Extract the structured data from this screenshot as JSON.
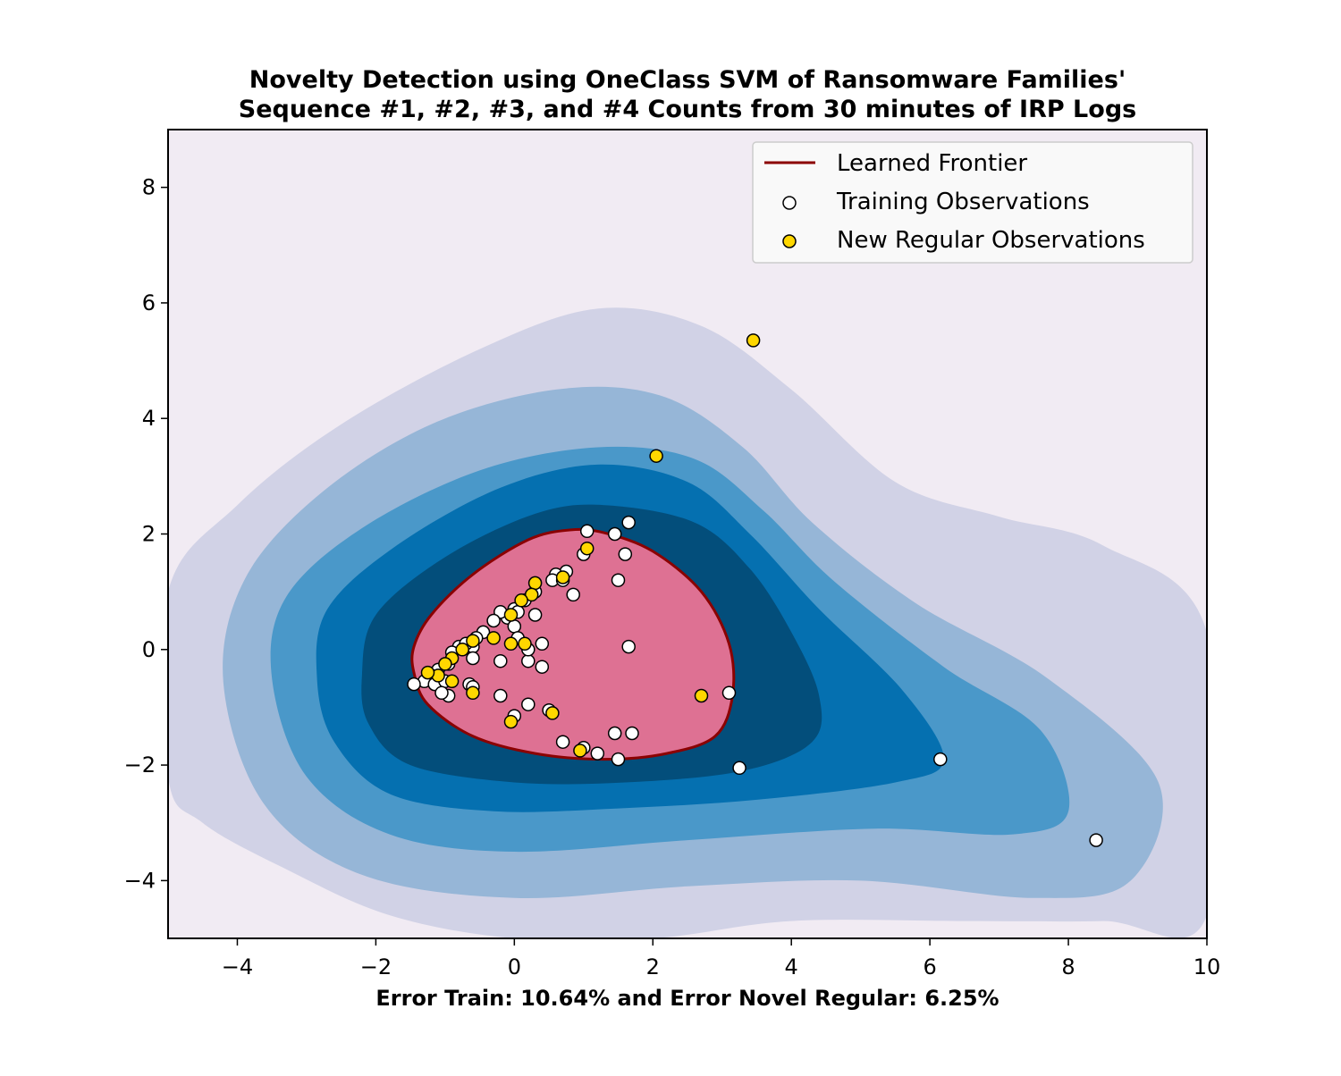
{
  "chart_data": {
    "type": "scatter",
    "title_line1": "Novelty Detection using OneClass SVM of Ransomware Families'",
    "title_line2": "Sequence #1, #2, #3, and #4 Counts from 30 minutes of IRP Logs",
    "xlabel": "Error Train: 10.64% and Error Novel Regular: 6.25%",
    "ylabel": "",
    "xlim": [
      -5,
      10
    ],
    "ylim": [
      -5,
      9
    ],
    "xticks": [
      -4,
      -2,
      0,
      2,
      4,
      6,
      8,
      10
    ],
    "yticks": [
      -4,
      -2,
      0,
      2,
      4,
      6,
      8
    ],
    "xtick_labels": [
      "−4",
      "−2",
      "0",
      "2",
      "4",
      "6",
      "8",
      "10"
    ],
    "ytick_labels": [
      "−4",
      "−2",
      "0",
      "2",
      "4",
      "6",
      "8"
    ],
    "grid": false,
    "legend_position": "top-right",
    "legend": [
      {
        "label": "Learned Frontier",
        "kind": "line",
        "color": "#8b0000"
      },
      {
        "label": "Training Observations",
        "kind": "marker",
        "color": "#ffffff"
      },
      {
        "label": "New Regular Observations",
        "kind": "marker",
        "color": "#ffd700"
      }
    ],
    "colors": {
      "background": "#f1ebf3",
      "contour_levels": [
        "#d1d2e6",
        "#96b6d7",
        "#4a98c9",
        "#0570b0",
        "#034e7b"
      ],
      "inside_region": "#de7193",
      "frontier": "#8b0000"
    },
    "frontier_center": [
      0.8,
      0.1
    ],
    "frontier": [
      [
        -1.45,
        -0.4
      ],
      [
        -1.45,
        0.05
      ],
      [
        -1.2,
        0.6
      ],
      [
        -0.6,
        1.3
      ],
      [
        0.2,
        1.9
      ],
      [
        0.8,
        2.07
      ],
      [
        1.3,
        2.02
      ],
      [
        2.0,
        1.7
      ],
      [
        2.7,
        1.0
      ],
      [
        3.1,
        0.1
      ],
      [
        3.15,
        -0.8
      ],
      [
        2.9,
        -1.5
      ],
      [
        2.2,
        -1.8
      ],
      [
        1.3,
        -1.9
      ],
      [
        0.3,
        -1.8
      ],
      [
        -0.6,
        -1.5
      ],
      [
        -1.25,
        -0.95
      ]
    ],
    "contour_bands": [
      [
        [
          -5,
          1
        ],
        [
          -4,
          2.5
        ],
        [
          -2.5,
          3.9
        ],
        [
          -0.5,
          5.2
        ],
        [
          1.2,
          5.9
        ],
        [
          2.7,
          5.6
        ],
        [
          4,
          4.5
        ],
        [
          5.5,
          2.9
        ],
        [
          7,
          2.3
        ],
        [
          8.5,
          1.8
        ],
        [
          10,
          0.3
        ],
        [
          10,
          -4.6
        ],
        [
          8.5,
          -4.7
        ],
        [
          6.5,
          -4.7
        ],
        [
          4,
          -4.7
        ],
        [
          2,
          -5.0
        ],
        [
          0,
          -5.0
        ],
        [
          -1.8,
          -4.6
        ],
        [
          -3.3,
          -3.8
        ],
        [
          -4.5,
          -3.0
        ],
        [
          -5,
          -2.2
        ]
      ],
      [
        [
          -4.2,
          -0.6
        ],
        [
          -3.9,
          1.2
        ],
        [
          -2.8,
          2.7
        ],
        [
          -1.2,
          3.9
        ],
        [
          0.6,
          4.5
        ],
        [
          2.1,
          4.4
        ],
        [
          3.3,
          3.5
        ],
        [
          4.3,
          2.2
        ],
        [
          5.8,
          0.8
        ],
        [
          7.7,
          -0.5
        ],
        [
          9.3,
          -2.3
        ],
        [
          8.9,
          -4.0
        ],
        [
          7.5,
          -4.3
        ],
        [
          5.0,
          -4.0
        ],
        [
          2.5,
          -4.1
        ],
        [
          0,
          -4.3
        ],
        [
          -2.2,
          -3.9
        ],
        [
          -3.6,
          -2.7
        ]
      ],
      [
        [
          -3.5,
          -0.5
        ],
        [
          -3.3,
          0.9
        ],
        [
          -2.2,
          2.1
        ],
        [
          -0.5,
          3.1
        ],
        [
          1.2,
          3.5
        ],
        [
          2.6,
          3.3
        ],
        [
          3.6,
          2.4
        ],
        [
          4.6,
          1.2
        ],
        [
          6.2,
          -0.3
        ],
        [
          7.6,
          -1.4
        ],
        [
          8.0,
          -2.8
        ],
        [
          7.2,
          -3.2
        ],
        [
          5.2,
          -3.1
        ],
        [
          2.5,
          -3.3
        ],
        [
          0,
          -3.5
        ],
        [
          -1.8,
          -3.2
        ],
        [
          -3.0,
          -2.2
        ]
      ],
      [
        [
          -2.85,
          -0.5
        ],
        [
          -2.7,
          0.7
        ],
        [
          -1.7,
          1.8
        ],
        [
          -0.2,
          2.8
        ],
        [
          1.2,
          3.2
        ],
        [
          2.5,
          2.9
        ],
        [
          3.4,
          2.0
        ],
        [
          4.4,
          0.7
        ],
        [
          5.6,
          -0.7
        ],
        [
          6.2,
          -1.9
        ],
        [
          5.5,
          -2.3
        ],
        [
          3.5,
          -2.6
        ],
        [
          1.5,
          -2.75
        ],
        [
          -0.3,
          -2.8
        ],
        [
          -1.8,
          -2.5
        ],
        [
          -2.6,
          -1.6
        ]
      ],
      [
        [
          -2.2,
          -0.45
        ],
        [
          -2.0,
          0.6
        ],
        [
          -1.0,
          1.6
        ],
        [
          0.3,
          2.35
        ],
        [
          1.3,
          2.5
        ],
        [
          2.6,
          2.2
        ],
        [
          3.4,
          1.4
        ],
        [
          4.0,
          0.3
        ],
        [
          4.4,
          -0.8
        ],
        [
          4.3,
          -1.6
        ],
        [
          3.3,
          -2.1
        ],
        [
          1.6,
          -2.3
        ],
        [
          0,
          -2.3
        ],
        [
          -1.5,
          -2.0
        ],
        [
          -2.1,
          -1.3
        ]
      ]
    ],
    "training_observations": [
      [
        1.05,
        2.05
      ],
      [
        1.65,
        2.2
      ],
      [
        1.45,
        2.0
      ],
      [
        1.6,
        1.65
      ],
      [
        1.0,
        1.65
      ],
      [
        0.75,
        1.35
      ],
      [
        0.6,
        1.3
      ],
      [
        0.55,
        1.2
      ],
      [
        0.7,
        1.2
      ],
      [
        1.5,
        1.2
      ],
      [
        0.3,
        1.0
      ],
      [
        0.85,
        0.95
      ],
      [
        0.15,
        0.85
      ],
      [
        0.0,
        0.7
      ],
      [
        -0.1,
        0.55
      ],
      [
        0.3,
        0.6
      ],
      [
        -0.2,
        0.65
      ],
      [
        -0.3,
        0.5
      ],
      [
        0.05,
        0.65
      ],
      [
        -0.45,
        0.3
      ],
      [
        -0.55,
        0.2
      ],
      [
        -0.6,
        0.05
      ],
      [
        -0.8,
        0.05
      ],
      [
        -0.9,
        -0.05
      ],
      [
        -0.7,
        0.1
      ],
      [
        -0.95,
        -0.25
      ],
      [
        -1.1,
        -0.35
      ],
      [
        -1.2,
        -0.45
      ],
      [
        -1.3,
        -0.55
      ],
      [
        -1.45,
        -0.6
      ],
      [
        -1.15,
        -0.6
      ],
      [
        -1.0,
        -0.55
      ],
      [
        -0.6,
        -0.15
      ],
      [
        0.4,
        0.1
      ],
      [
        0.0,
        0.4
      ],
      [
        -0.2,
        -0.2
      ],
      [
        0.2,
        -0.2
      ],
      [
        0.4,
        -0.3
      ],
      [
        0.2,
        0.0
      ],
      [
        0.05,
        0.2
      ],
      [
        1.65,
        0.05
      ],
      [
        -0.95,
        -0.8
      ],
      [
        -1.05,
        -0.75
      ],
      [
        -0.65,
        -0.6
      ],
      [
        -0.6,
        -0.65
      ],
      [
        -0.2,
        -0.8
      ],
      [
        0.2,
        -0.95
      ],
      [
        0.0,
        -1.15
      ],
      [
        0.5,
        -1.05
      ],
      [
        0.7,
        -1.6
      ],
      [
        1.0,
        -1.7
      ],
      [
        1.2,
        -1.8
      ],
      [
        1.45,
        -1.45
      ],
      [
        1.7,
        -1.45
      ],
      [
        1.5,
        -1.9
      ],
      [
        3.1,
        -0.75
      ],
      [
        3.25,
        -2.05
      ],
      [
        6.15,
        -1.9
      ],
      [
        8.4,
        -3.3
      ]
    ],
    "new_regular_observations": [
      [
        3.45,
        5.35
      ],
      [
        2.05,
        3.35
      ],
      [
        1.05,
        1.75
      ],
      [
        0.7,
        1.25
      ],
      [
        0.3,
        1.15
      ],
      [
        0.25,
        0.95
      ],
      [
        0.1,
        0.85
      ],
      [
        -0.05,
        0.6
      ],
      [
        -0.3,
        0.2
      ],
      [
        -0.6,
        0.15
      ],
      [
        -0.75,
        0.0
      ],
      [
        -0.9,
        -0.15
      ],
      [
        -1.0,
        -0.25
      ],
      [
        -1.1,
        -0.45
      ],
      [
        -1.25,
        -0.4
      ],
      [
        -0.9,
        -0.55
      ],
      [
        -0.6,
        -0.75
      ],
      [
        -0.05,
        0.1
      ],
      [
        0.15,
        0.1
      ],
      [
        0.55,
        -1.1
      ],
      [
        -0.05,
        -1.25
      ],
      [
        0.95,
        -1.75
      ],
      [
        2.7,
        -0.8
      ]
    ]
  }
}
